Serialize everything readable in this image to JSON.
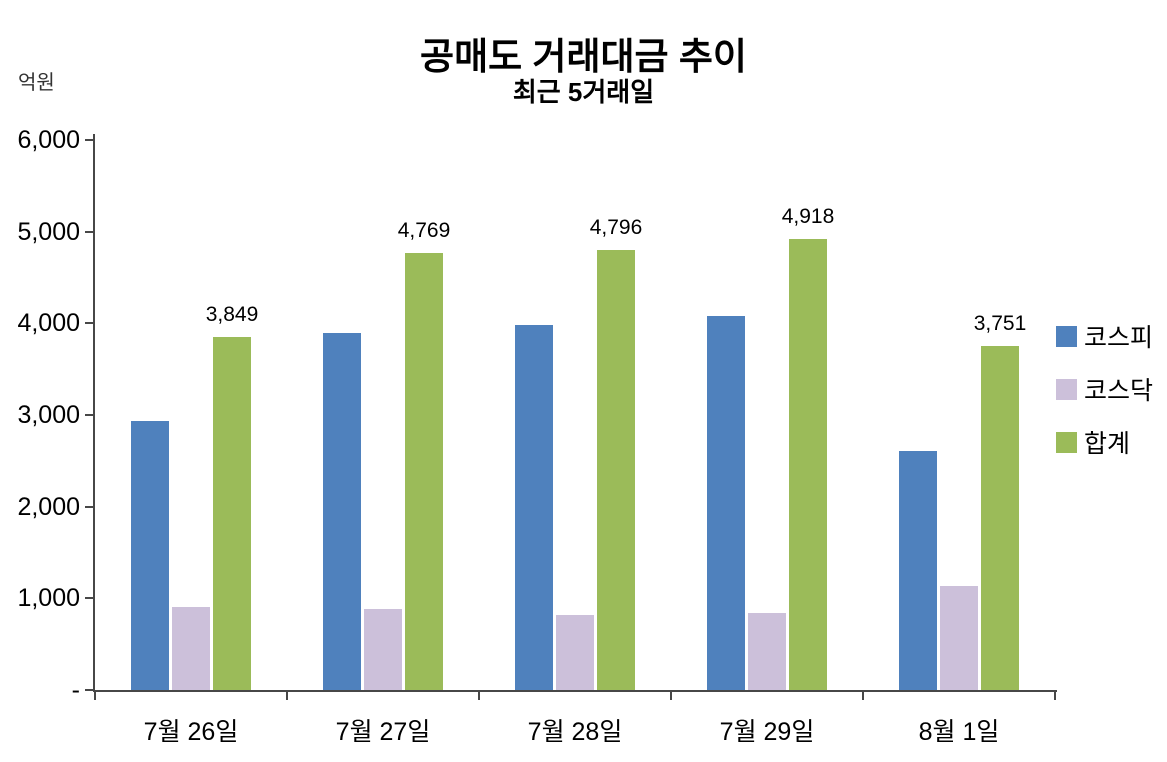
{
  "chart_data": {
    "type": "bar",
    "title": "공매도 거래대금 추이",
    "subtitle": "최근 5거래일",
    "unit_label": "억원",
    "categories": [
      "7월 26일",
      "7월 27일",
      "7월 28일",
      "7월 29일",
      "8월 1일"
    ],
    "series": [
      {
        "name": "코스피",
        "color": "#4F81BD",
        "values": [
          2940,
          3890,
          3980,
          4080,
          2610
        ]
      },
      {
        "name": "코스닥",
        "color": "#CCC0DA",
        "values": [
          910,
          880,
          820,
          840,
          1140
        ]
      },
      {
        "name": "합계",
        "color": "#9BBB59",
        "values": [
          3849,
          4769,
          4796,
          4918,
          3751
        ],
        "data_labels": [
          "3,849",
          "4,769",
          "4,796",
          "4,918",
          "3,751"
        ]
      }
    ],
    "ylim": [
      0,
      6000
    ],
    "ytick_step": 1000,
    "ytick_labels": [
      "-",
      "1,000",
      "2,000",
      "3,000",
      "4,000",
      "5,000",
      "6,000"
    ],
    "grid": false,
    "legend_position": "right",
    "axis_color": "#474747",
    "background_color": "#FFFFFF"
  }
}
